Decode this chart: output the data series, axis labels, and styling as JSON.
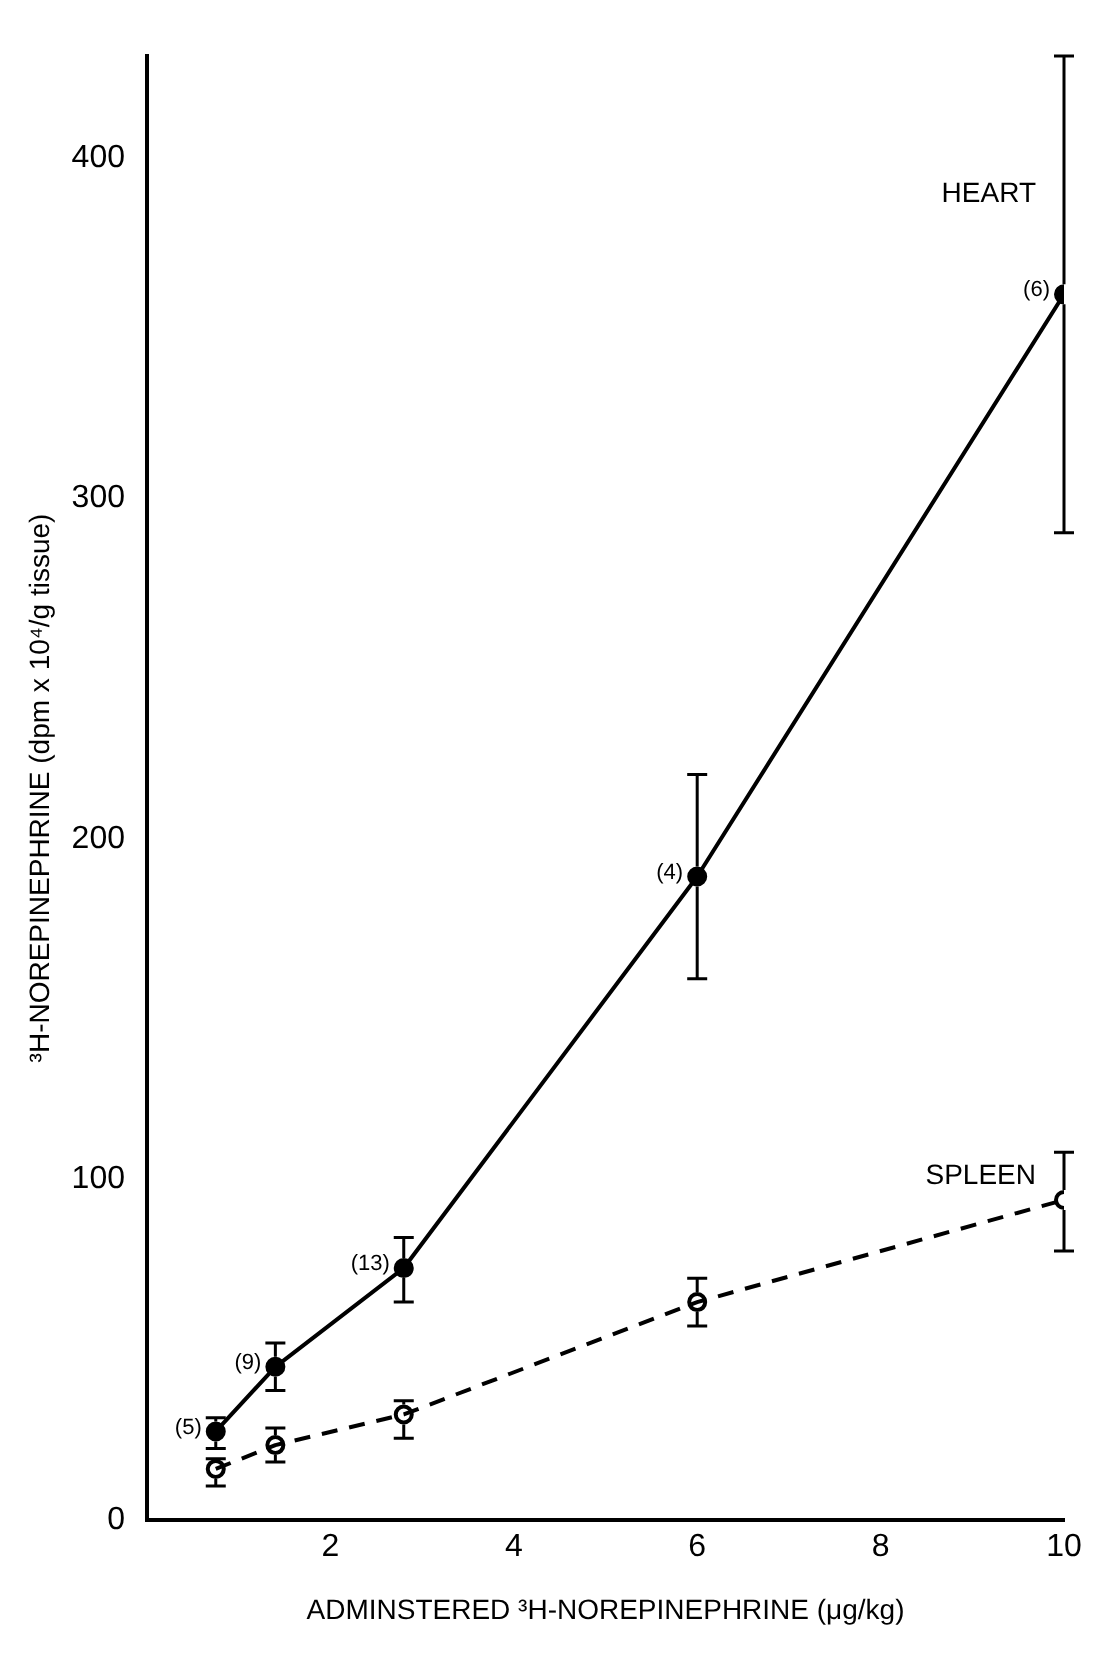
{
  "chart_data": {
    "type": "line",
    "xlabel": "ADMINSTERED ³H-NOREPINEPHRINE (μg/kg)",
    "ylabel": "³H-NOREPINEPHRINE (dpm x 10⁴/g tissue)",
    "xlim": [
      0,
      10
    ],
    "xticks": [
      2,
      4,
      6,
      8,
      10
    ],
    "ylim": [
      0,
      430
    ],
    "yticks": [
      0,
      100,
      200,
      300,
      400
    ],
    "grid": false,
    "legend": false,
    "marker": "circle",
    "series": [
      {
        "name": "HEART",
        "color": "#000000",
        "line_style": "solid",
        "x": [
          0.75,
          1.4,
          2.8,
          6,
          10
        ],
        "values": [
          26,
          45,
          74,
          189,
          360
        ],
        "errors": [
          [
            21,
            30
          ],
          [
            38,
            52
          ],
          [
            64,
            83
          ],
          [
            159,
            219
          ],
          [
            290,
            430
          ]
        ]
      },
      {
        "name": "SPLEEN",
        "color": "#000000",
        "line_style": "dashed",
        "x": [
          0.75,
          1.4,
          2.8,
          6,
          10
        ],
        "values": [
          15,
          22,
          31,
          64,
          94
        ],
        "errors": [
          [
            10,
            18
          ],
          [
            17,
            27
          ],
          [
            24,
            35
          ],
          [
            57,
            71
          ],
          [
            79,
            108
          ]
        ]
      }
    ],
    "annotations": [
      {
        "text": "(5)",
        "x": 0.75,
        "y": 26
      },
      {
        "text": "(9)",
        "x": 1.4,
        "y": 45
      },
      {
        "text": "(13)",
        "x": 2.8,
        "y": 74
      },
      {
        "text": "(4)",
        "x": 6,
        "y": 189
      },
      {
        "text": "(6)",
        "x": 10,
        "y": 360
      }
    ]
  }
}
